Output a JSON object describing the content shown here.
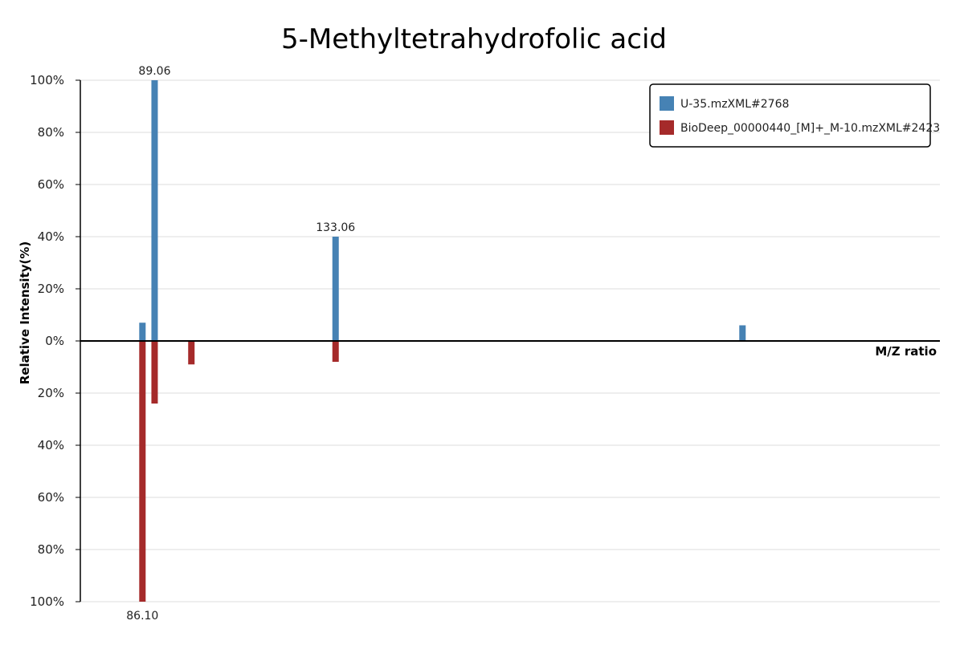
{
  "chart_data": {
    "type": "bar",
    "title": "5-Methyltetrahydrofolic acid",
    "xlabel": "M/Z ratio",
    "ylabel": "Relative Intensity(%)",
    "xlim": [
      71,
      280
    ],
    "ylim": [
      -100,
      100
    ],
    "y_ticks": [
      100,
      80,
      60,
      40,
      20,
      0,
      -20,
      -40,
      -60,
      -80,
      -100
    ],
    "y_tick_labels": [
      "100%",
      "80%",
      "60%",
      "40%",
      "20%",
      "0%",
      "20%",
      "40%",
      "60%",
      "80%",
      "100%"
    ],
    "grid": true,
    "legend_position": "top-right",
    "series": [
      {
        "name": "U-35.mzXML#2768",
        "color": "#4682b4",
        "direction": "up",
        "peaks": [
          {
            "mz": 86.1,
            "intensity": 7
          },
          {
            "mz": 89.06,
            "intensity": 100,
            "label": "89.06"
          },
          {
            "mz": 133.06,
            "intensity": 40,
            "label": "133.06"
          },
          {
            "mz": 232.0,
            "intensity": 6
          }
        ]
      },
      {
        "name": "BioDeep_00000440_[M]+_M-10.mzXML#2423",
        "color": "#a52a2a",
        "direction": "down",
        "peaks": [
          {
            "mz": 86.1,
            "intensity": 100,
            "label": "86.10"
          },
          {
            "mz": 89.06,
            "intensity": 24
          },
          {
            "mz": 98.0,
            "intensity": 9
          },
          {
            "mz": 133.06,
            "intensity": 8
          }
        ]
      }
    ]
  }
}
